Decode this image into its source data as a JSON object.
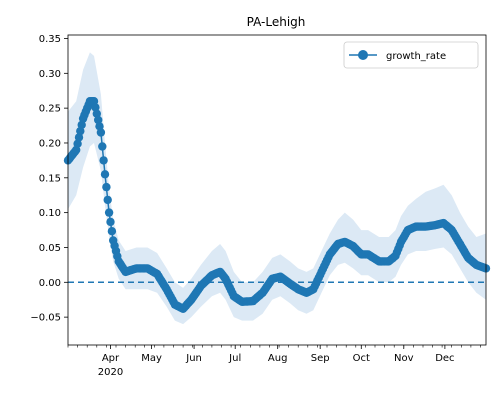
{
  "chart_data": {
    "type": "line",
    "title": "PA-Lehigh",
    "xlabel": "",
    "ylabel": "",
    "x_range": [
      "2020-03-01",
      "2020-12-31"
    ],
    "ylim": [
      -0.09,
      0.355
    ],
    "y_ticks": [
      -0.05,
      0.0,
      0.05,
      0.1,
      0.15,
      0.2,
      0.25,
      0.3,
      0.35
    ],
    "y_tick_labels": [
      "−0.05",
      "0.00",
      "0.05",
      "0.10",
      "0.15",
      "0.20",
      "0.25",
      "0.30",
      "0.35"
    ],
    "x_ticks": [
      {
        "date": "2020-04-01",
        "label": "Apr",
        "sublabel": "2020"
      },
      {
        "date": "2020-05-01",
        "label": "May",
        "sublabel": ""
      },
      {
        "date": "2020-06-01",
        "label": "Jun",
        "sublabel": ""
      },
      {
        "date": "2020-07-01",
        "label": "Jul",
        "sublabel": ""
      },
      {
        "date": "2020-08-01",
        "label": "Aug",
        "sublabel": ""
      },
      {
        "date": "2020-09-01",
        "label": "Sep",
        "sublabel": ""
      },
      {
        "date": "2020-10-01",
        "label": "Oct",
        "sublabel": ""
      },
      {
        "date": "2020-11-01",
        "label": "Nov",
        "sublabel": ""
      },
      {
        "date": "2020-12-01",
        "label": "Dec",
        "sublabel": ""
      }
    ],
    "reference_line": {
      "y": 0.0,
      "style": "dashed"
    },
    "legend": {
      "position": "top-right",
      "entries": [
        "growth_rate"
      ]
    },
    "series": [
      {
        "name": "growth_rate",
        "color": "#1f77b4",
        "band_color": "#dce9f5",
        "points": [
          {
            "x": "2020-03-01",
            "y": 0.175,
            "lo": 0.105,
            "hi": 0.245
          },
          {
            "x": "2020-03-07",
            "y": 0.19,
            "lo": 0.125,
            "hi": 0.26
          },
          {
            "x": "2020-03-12",
            "y": 0.235,
            "lo": 0.165,
            "hi": 0.305
          },
          {
            "x": "2020-03-17",
            "y": 0.26,
            "lo": 0.195,
            "hi": 0.33
          },
          {
            "x": "2020-03-20",
            "y": 0.26,
            "lo": 0.2,
            "hi": 0.325
          },
          {
            "x": "2020-03-25",
            "y": 0.215,
            "lo": 0.16,
            "hi": 0.27
          },
          {
            "x": "2020-03-28",
            "y": 0.155,
            "lo": 0.11,
            "hi": 0.2
          },
          {
            "x": "2020-03-31",
            "y": 0.1,
            "lo": 0.065,
            "hi": 0.135
          },
          {
            "x": "2020-04-03",
            "y": 0.06,
            "lo": 0.03,
            "hi": 0.09
          },
          {
            "x": "2020-04-07",
            "y": 0.03,
            "lo": 0.005,
            "hi": 0.06
          },
          {
            "x": "2020-04-12",
            "y": 0.015,
            "lo": -0.01,
            "hi": 0.045
          },
          {
            "x": "2020-04-20",
            "y": 0.02,
            "lo": -0.01,
            "hi": 0.05
          },
          {
            "x": "2020-04-28",
            "y": 0.02,
            "lo": -0.01,
            "hi": 0.05
          },
          {
            "x": "2020-05-05",
            "y": 0.012,
            "lo": -0.015,
            "hi": 0.042
          },
          {
            "x": "2020-05-12",
            "y": -0.01,
            "lo": -0.035,
            "hi": 0.02
          },
          {
            "x": "2020-05-18",
            "y": -0.032,
            "lo": -0.055,
            "hi": 0.0
          },
          {
            "x": "2020-05-24",
            "y": -0.038,
            "lo": -0.06,
            "hi": -0.008
          },
          {
            "x": "2020-05-30",
            "y": -0.025,
            "lo": -0.05,
            "hi": 0.005
          },
          {
            "x": "2020-06-06",
            "y": -0.005,
            "lo": -0.035,
            "hi": 0.025
          },
          {
            "x": "2020-06-14",
            "y": 0.01,
            "lo": -0.02,
            "hi": 0.045
          },
          {
            "x": "2020-06-20",
            "y": 0.015,
            "lo": -0.015,
            "hi": 0.055
          },
          {
            "x": "2020-06-24",
            "y": 0.005,
            "lo": -0.025,
            "hi": 0.045
          },
          {
            "x": "2020-06-30",
            "y": -0.02,
            "lo": -0.05,
            "hi": 0.015
          },
          {
            "x": "2020-07-06",
            "y": -0.028,
            "lo": -0.055,
            "hi": 0.0
          },
          {
            "x": "2020-07-14",
            "y": -0.027,
            "lo": -0.055,
            "hi": 0.0
          },
          {
            "x": "2020-07-21",
            "y": -0.015,
            "lo": -0.045,
            "hi": 0.015
          },
          {
            "x": "2020-07-28",
            "y": 0.005,
            "lo": -0.025,
            "hi": 0.035
          },
          {
            "x": "2020-08-03",
            "y": 0.008,
            "lo": -0.02,
            "hi": 0.04
          },
          {
            "x": "2020-08-10",
            "y": -0.002,
            "lo": -0.03,
            "hi": 0.03
          },
          {
            "x": "2020-08-16",
            "y": -0.01,
            "lo": -0.04,
            "hi": 0.02
          },
          {
            "x": "2020-08-22",
            "y": -0.015,
            "lo": -0.045,
            "hi": 0.015
          },
          {
            "x": "2020-08-27",
            "y": -0.01,
            "lo": -0.04,
            "hi": 0.02
          },
          {
            "x": "2020-09-02",
            "y": 0.015,
            "lo": -0.015,
            "hi": 0.045
          },
          {
            "x": "2020-09-08",
            "y": 0.04,
            "lo": 0.01,
            "hi": 0.07
          },
          {
            "x": "2020-09-14",
            "y": 0.055,
            "lo": 0.025,
            "hi": 0.09
          },
          {
            "x": "2020-09-19",
            "y": 0.058,
            "lo": 0.028,
            "hi": 0.1
          },
          {
            "x": "2020-09-25",
            "y": 0.052,
            "lo": 0.02,
            "hi": 0.09
          },
          {
            "x": "2020-10-01",
            "y": 0.04,
            "lo": 0.01,
            "hi": 0.075
          },
          {
            "x": "2020-10-06",
            "y": 0.04,
            "lo": 0.01,
            "hi": 0.075
          },
          {
            "x": "2020-10-14",
            "y": 0.03,
            "lo": 0.0,
            "hi": 0.065
          },
          {
            "x": "2020-10-21",
            "y": 0.03,
            "lo": 0.0,
            "hi": 0.065
          },
          {
            "x": "2020-10-26",
            "y": 0.038,
            "lo": 0.008,
            "hi": 0.075
          },
          {
            "x": "2020-10-30",
            "y": 0.058,
            "lo": 0.025,
            "hi": 0.095
          },
          {
            "x": "2020-11-04",
            "y": 0.075,
            "lo": 0.04,
            "hi": 0.11
          },
          {
            "x": "2020-11-10",
            "y": 0.08,
            "lo": 0.045,
            "hi": 0.12
          },
          {
            "x": "2020-11-17",
            "y": 0.08,
            "lo": 0.045,
            "hi": 0.13
          },
          {
            "x": "2020-11-24",
            "y": 0.082,
            "lo": 0.048,
            "hi": 0.135
          },
          {
            "x": "2020-11-30",
            "y": 0.085,
            "lo": 0.05,
            "hi": 0.14
          },
          {
            "x": "2020-12-06",
            "y": 0.075,
            "lo": 0.04,
            "hi": 0.125
          },
          {
            "x": "2020-12-12",
            "y": 0.055,
            "lo": 0.02,
            "hi": 0.1
          },
          {
            "x": "2020-12-18",
            "y": 0.035,
            "lo": 0.0,
            "hi": 0.08
          },
          {
            "x": "2020-12-24",
            "y": 0.025,
            "lo": -0.015,
            "hi": 0.065
          },
          {
            "x": "2020-12-31",
            "y": 0.02,
            "lo": -0.025,
            "hi": 0.07
          }
        ]
      }
    ]
  }
}
